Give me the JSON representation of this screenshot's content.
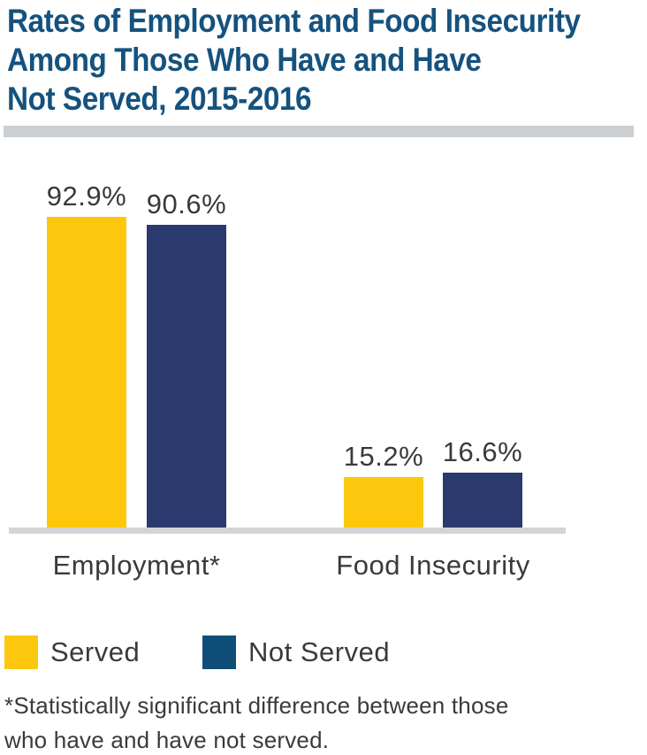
{
  "title": {
    "lines": [
      "Rates of Employment and Food Insecurity",
      "Among Those Who Have and Have",
      "Not Served, 2015-2016"
    ]
  },
  "colors": {
    "title_blue": "#15527e",
    "divider_gray": "#cccfd1",
    "baseline_gray": "#d4d4d4",
    "served_yellow": "#fdc70d",
    "not_served_navy": "#2b3a6e",
    "legend_not_served_blue": "#0e4e79",
    "text_dark": "#3a3a3d"
  },
  "chart_data": {
    "type": "bar",
    "categories": [
      "Employment*",
      "Food Insecurity"
    ],
    "series": [
      {
        "name": "Served",
        "color": "#fdc70d",
        "values": [
          92.9,
          15.2
        ],
        "labels": [
          "92.9%",
          "15.2%"
        ]
      },
      {
        "name": "Not Served",
        "color": "#2b3a6e",
        "values": [
          90.6,
          16.6
        ],
        "labels": [
          "90.6%",
          "16.6%"
        ]
      }
    ],
    "ylim": [
      0,
      100
    ],
    "value_unit": "%",
    "grid": false,
    "y_axis_visible": false,
    "legend_position": "bottom-left"
  },
  "legend": {
    "items": [
      {
        "label": "Served",
        "color": "#fdc70d"
      },
      {
        "label": "Not Served",
        "color": "#0e4e79"
      }
    ]
  },
  "footnote": {
    "line1": "*Statistically significant difference between those",
    "line2": "who have and have not served."
  }
}
